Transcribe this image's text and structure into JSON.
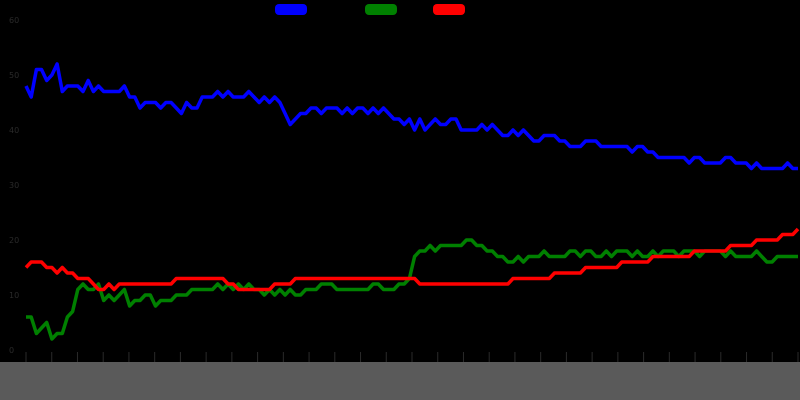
{
  "chart_data": {
    "type": "line",
    "title": "",
    "xlabel": "",
    "ylabel": "",
    "ylim": [
      0,
      60
    ],
    "yticks": [
      0,
      10,
      20,
      30,
      40,
      50,
      60
    ],
    "ytick_labels": [
      "0",
      "10",
      "20",
      "30",
      "40",
      "50",
      "60"
    ],
    "grid": false,
    "legend_placement": "top-center",
    "n_points": 150,
    "series": [
      {
        "name": "",
        "color": "#0000ff",
        "values": [
          48,
          46,
          51,
          51,
          49,
          50,
          52,
          47,
          48,
          48,
          48,
          47,
          49,
          47,
          48,
          47,
          47,
          47,
          47,
          48,
          46,
          46,
          44,
          45,
          45,
          45,
          44,
          45,
          45,
          44,
          43,
          45,
          44,
          44,
          46,
          46,
          46,
          47,
          46,
          47,
          46,
          46,
          46,
          47,
          46,
          45,
          46,
          45,
          46,
          45,
          43,
          41,
          42,
          43,
          43,
          44,
          44,
          43,
          44,
          44,
          44,
          43,
          44,
          43,
          44,
          44,
          43,
          44,
          43,
          44,
          43,
          42,
          42,
          41,
          42,
          40,
          42,
          40,
          41,
          42,
          41,
          41,
          42,
          42,
          40,
          40,
          40,
          40,
          41,
          40,
          41,
          40,
          39,
          39,
          40,
          39,
          40,
          39,
          38,
          38,
          39,
          39,
          39,
          38,
          38,
          37,
          37,
          37,
          38,
          38,
          38,
          37,
          37,
          37,
          37,
          37,
          37,
          36,
          37,
          37,
          36,
          36,
          35,
          35,
          35,
          35,
          35,
          35,
          34,
          35,
          35,
          34,
          34,
          34,
          34,
          35,
          35,
          34,
          34,
          34,
          33,
          34,
          33,
          33,
          33,
          33,
          33,
          34,
          33,
          33
        ]
      },
      {
        "name": "",
        "color": "#008000",
        "values": [
          6,
          6,
          3,
          4,
          5,
          2,
          3,
          3,
          6,
          7,
          11,
          12,
          11,
          11,
          12,
          9,
          10,
          9,
          10,
          11,
          8,
          9,
          9,
          10,
          10,
          8,
          9,
          9,
          9,
          10,
          10,
          10,
          11,
          11,
          11,
          11,
          11,
          12,
          11,
          12,
          11,
          12,
          11,
          12,
          11,
          11,
          10,
          11,
          10,
          11,
          10,
          11,
          10,
          10,
          11,
          11,
          11,
          12,
          12,
          12,
          11,
          11,
          11,
          11,
          11,
          11,
          11,
          12,
          12,
          11,
          11,
          11,
          12,
          12,
          13,
          17,
          18,
          18,
          19,
          18,
          19,
          19,
          19,
          19,
          19,
          20,
          20,
          19,
          19,
          18,
          18,
          17,
          17,
          16,
          16,
          17,
          16,
          17,
          17,
          17,
          18,
          17,
          17,
          17,
          17,
          18,
          18,
          17,
          18,
          18,
          17,
          17,
          18,
          17,
          18,
          18,
          18,
          17,
          18,
          17,
          17,
          18,
          17,
          18,
          18,
          18,
          17,
          18,
          18,
          18,
          17,
          18,
          18,
          18,
          18,
          17,
          18,
          17,
          17,
          17,
          17,
          18,
          17,
          16,
          16,
          17,
          17,
          17,
          17,
          17
        ]
      },
      {
        "name": "",
        "color": "#ff0000",
        "values": [
          15,
          16,
          16,
          16,
          15,
          15,
          14,
          15,
          14,
          14,
          13,
          13,
          13,
          12,
          11,
          11,
          12,
          11,
          12,
          12,
          12,
          12,
          12,
          12,
          12,
          12,
          12,
          12,
          12,
          13,
          13,
          13,
          13,
          13,
          13,
          13,
          13,
          13,
          13,
          12,
          12,
          11,
          11,
          11,
          11,
          11,
          11,
          11,
          12,
          12,
          12,
          12,
          13,
          13,
          13,
          13,
          13,
          13,
          13,
          13,
          13,
          13,
          13,
          13,
          13,
          13,
          13,
          13,
          13,
          13,
          13,
          13,
          13,
          13,
          13,
          13,
          12,
          12,
          12,
          12,
          12,
          12,
          12,
          12,
          12,
          12,
          12,
          12,
          12,
          12,
          12,
          12,
          12,
          12,
          13,
          13,
          13,
          13,
          13,
          13,
          13,
          13,
          14,
          14,
          14,
          14,
          14,
          14,
          15,
          15,
          15,
          15,
          15,
          15,
          15,
          16,
          16,
          16,
          16,
          16,
          16,
          17,
          17,
          17,
          17,
          17,
          17,
          17,
          17,
          18,
          18,
          18,
          18,
          18,
          18,
          18,
          19,
          19,
          19,
          19,
          19,
          20,
          20,
          20,
          20,
          20,
          21,
          21,
          21,
          22
        ]
      }
    ]
  }
}
